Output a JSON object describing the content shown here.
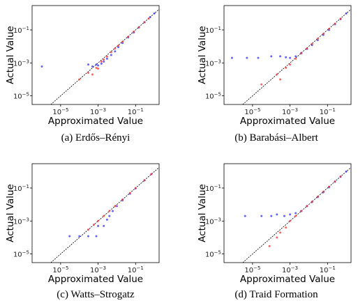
{
  "chart_data": [
    {
      "type": "scatter",
      "caption": "(a) Erdős–Rényi",
      "xlabel": "Approximated Value",
      "ylabel": "Actual Value",
      "scale": "log",
      "xlim": [
        3e-07,
        1.8
      ],
      "ylim": [
        3e-06,
        3
      ],
      "xticks": [
        "10^-5",
        "10^-3",
        "10^-1"
      ],
      "yticks": [
        "10^-1",
        "10^-3",
        "10^-5"
      ],
      "reference_line": "y = x (dashed black)",
      "series": [
        {
          "color": "#3333ff",
          "points": [
            [
              1e-06,
              0.0006
            ],
            [
              0.0003,
              0.0008
            ],
            [
              0.0005,
              0.0006
            ],
            [
              0.0008,
              0.0008
            ],
            [
              0.001,
              0.0007
            ],
            [
              0.0015,
              0.0009
            ],
            [
              0.002,
              0.0012
            ],
            [
              0.003,
              0.0018
            ],
            [
              0.005,
              0.003
            ],
            [
              0.008,
              0.005
            ],
            [
              0.012,
              0.009
            ],
            [
              0.02,
              0.016
            ],
            [
              0.04,
              0.035
            ],
            [
              0.08,
              0.07
            ],
            [
              0.15,
              0.14
            ],
            [
              0.3,
              0.29
            ],
            [
              0.6,
              0.6
            ],
            [
              1.0,
              1.0
            ]
          ]
        },
        {
          "color": "#ff3333",
          "points": [
            [
              0.0001,
              0.0001
            ],
            [
              0.0003,
              0.00025
            ],
            [
              0.0005,
              0.0002
            ],
            [
              0.0008,
              0.0005
            ],
            [
              0.001,
              0.00045
            ],
            [
              0.0015,
              0.0012
            ],
            [
              0.002,
              0.0016
            ],
            [
              0.003,
              0.0024
            ],
            [
              0.005,
              0.0045
            ],
            [
              0.008,
              0.0075
            ],
            [
              0.012,
              0.011
            ],
            [
              0.02,
              0.019
            ],
            [
              0.04,
              0.038
            ],
            [
              0.08,
              0.078
            ],
            [
              0.15,
              0.145
            ],
            [
              0.3,
              0.295
            ],
            [
              0.5,
              0.49
            ]
          ]
        }
      ]
    },
    {
      "type": "scatter",
      "caption": "(b) Barabási–Albert",
      "xlabel": "Approximated Value",
      "ylabel": "Actual Value",
      "scale": "log",
      "xlim": [
        3e-07,
        1.8
      ],
      "ylim": [
        3e-06,
        3
      ],
      "xticks": [
        "10^-5",
        "10^-3",
        "10^-1"
      ],
      "yticks": [
        "10^-1",
        "10^-3",
        "10^-5"
      ],
      "reference_line": "y = x (dashed black)",
      "series": [
        {
          "color": "#3333ff",
          "points": [
            [
              8e-07,
              0.002
            ],
            [
              5e-06,
              0.002
            ],
            [
              2e-05,
              0.002
            ],
            [
              0.0001,
              0.0025
            ],
            [
              0.0003,
              0.0025
            ],
            [
              0.0006,
              0.0022
            ],
            [
              0.001,
              0.002
            ],
            [
              0.002,
              0.0025
            ],
            [
              0.004,
              0.004
            ],
            [
              0.008,
              0.007
            ],
            [
              0.015,
              0.012
            ],
            [
              0.03,
              0.024
            ],
            [
              0.06,
              0.05
            ],
            [
              0.12,
              0.1
            ],
            [
              0.25,
              0.22
            ],
            [
              0.5,
              0.45
            ],
            [
              1.0,
              1.0
            ]
          ]
        },
        {
          "color": "#ff3333",
          "points": [
            [
              3e-05,
              5e-05
            ],
            [
              0.0002,
              0.0002
            ],
            [
              0.0003,
              0.0001
            ],
            [
              0.0006,
              0.0005
            ],
            [
              0.001,
              0.0008
            ],
            [
              0.002,
              0.0018
            ],
            [
              0.004,
              0.0038
            ],
            [
              0.008,
              0.0075
            ],
            [
              0.015,
              0.014
            ],
            [
              0.03,
              0.029
            ],
            [
              0.06,
              0.058
            ],
            [
              0.12,
              0.115
            ],
            [
              0.25,
              0.24
            ],
            [
              0.5,
              0.48
            ]
          ]
        }
      ]
    },
    {
      "type": "scatter",
      "caption": "(c) Watts–Strogatz",
      "xlabel": "Approximated Value",
      "ylabel": "Actual Value",
      "scale": "log",
      "xlim": [
        3e-07,
        1.8
      ],
      "ylim": [
        3e-06,
        3
      ],
      "xticks": [
        "10^-5",
        "10^-3",
        "10^-1"
      ],
      "yticks": [
        "10^-1",
        "10^-3",
        "10^-5"
      ],
      "reference_line": "y = x (dashed black)",
      "series": [
        {
          "color": "#3333ff",
          "points": [
            [
              3e-05,
              0.00012
            ],
            [
              0.0001,
              0.00012
            ],
            [
              0.0003,
              0.00012
            ],
            [
              0.0008,
              0.00012
            ],
            [
              0.001,
              0.0005
            ],
            [
              0.002,
              0.0005
            ],
            [
              0.003,
              0.0012
            ],
            [
              0.004,
              0.002
            ],
            [
              0.006,
              0.004
            ],
            [
              0.01,
              0.008
            ],
            [
              0.02,
              0.018
            ],
            [
              0.05,
              0.045
            ],
            [
              0.1,
              0.095
            ],
            [
              0.3,
              0.29
            ],
            [
              0.7,
              0.7
            ]
          ]
        },
        {
          "color": "#ff3333",
          "points": [
            [
              0.0003,
              0.0003
            ],
            [
              0.0006,
              0.0006
            ],
            [
              0.001,
              0.001
            ],
            [
              0.002,
              0.002
            ],
            [
              0.004,
              0.004
            ],
            [
              0.008,
              0.008
            ],
            [
              0.02,
              0.02
            ],
            [
              0.05,
              0.05
            ],
            [
              0.1,
              0.1
            ],
            [
              0.3,
              0.3
            ],
            [
              0.7,
              0.7
            ]
          ]
        }
      ]
    },
    {
      "type": "scatter",
      "caption": "(d) Traid Formation",
      "xlabel": "Approximated Value",
      "ylabel": "Actual Value",
      "scale": "log",
      "xlim": [
        3e-07,
        1.8
      ],
      "ylim": [
        3e-06,
        3
      ],
      "xticks": [
        "10^-5",
        "10^-3",
        "10^-1"
      ],
      "yticks": [
        "10^-1",
        "10^-3",
        "10^-5"
      ],
      "reference_line": "y = x (dashed black)",
      "series": [
        {
          "color": "#3333ff",
          "points": [
            [
              4e-06,
              0.002
            ],
            [
              3e-05,
              0.002
            ],
            [
              0.0001,
              0.002
            ],
            [
              0.0002,
              0.0025
            ],
            [
              0.0005,
              0.002
            ],
            [
              0.001,
              0.0025
            ],
            [
              0.002,
              0.003
            ],
            [
              0.004,
              0.004
            ],
            [
              0.008,
              0.008
            ],
            [
              0.015,
              0.014
            ],
            [
              0.03,
              0.028
            ],
            [
              0.06,
              0.055
            ],
            [
              0.12,
              0.11
            ],
            [
              0.25,
              0.24
            ],
            [
              0.5,
              0.48
            ],
            [
              1.0,
              1.0
            ]
          ]
        },
        {
          "color": "#ff3333",
          "points": [
            [
              8e-05,
              3e-05
            ],
            [
              0.0002,
              0.0001
            ],
            [
              0.0003,
              0.0002
            ],
            [
              0.0006,
              0.0004
            ],
            [
              0.001,
              0.001
            ],
            [
              0.002,
              0.002
            ],
            [
              0.004,
              0.004
            ],
            [
              0.008,
              0.008
            ],
            [
              0.015,
              0.015
            ],
            [
              0.03,
              0.03
            ],
            [
              0.06,
              0.06
            ],
            [
              0.12,
              0.12
            ],
            [
              0.25,
              0.25
            ],
            [
              0.5,
              0.5
            ]
          ]
        }
      ]
    }
  ]
}
